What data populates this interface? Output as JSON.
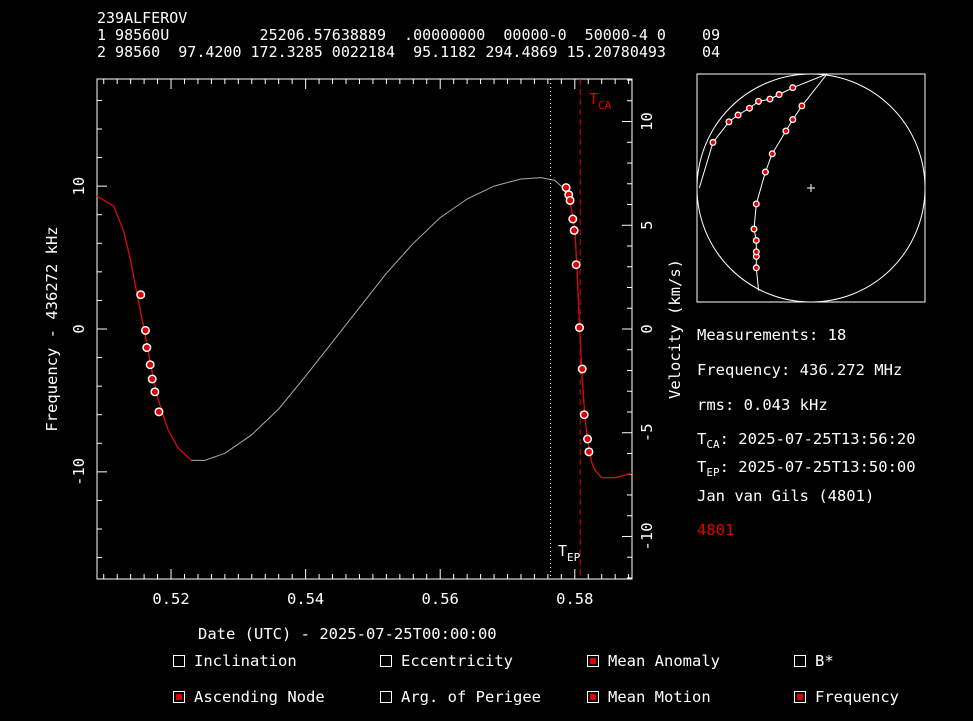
{
  "header": {
    "name": "239ALFEROV",
    "line1": "1 98560U          25206.57638889  .00000000  00000-0  50000-4 0    09",
    "line2": "2 98560  97.4200 172.3285 0022184  95.1182 294.4869 15.20780493    04"
  },
  "chart_data": {
    "type": "line",
    "xlabel": "Date (UTC) - 2025-07-25T00:00:00",
    "ylabel": "Frequency - 436272 kHz",
    "y2label": "Velocity (km/s)",
    "xlim": [
      0.509,
      0.5885
    ],
    "ylim": [
      -17.5,
      17.5
    ],
    "y2lim": [
      -12.05,
      12.05
    ],
    "xticks": [
      "0.52",
      "0.54",
      "0.56",
      "0.58"
    ],
    "yticks": [
      "10",
      "0",
      "-10"
    ],
    "y2ticks": [
      "10",
      "5",
      "0",
      "-5",
      "-10"
    ],
    "markers": {
      "tca": 0.5808,
      "tep": 0.5764,
      "tca_label": "T",
      "tca_sub": "CA",
      "tep_label": "T",
      "tep_sub": "EP"
    },
    "measurements": [
      {
        "x": 0.5155,
        "y": 2.4
      },
      {
        "x": 0.5162,
        "y": -0.1
      },
      {
        "x": 0.5164,
        "y": -1.3
      },
      {
        "x": 0.5169,
        "y": -2.5
      },
      {
        "x": 0.5172,
        "y": -3.5
      },
      {
        "x": 0.5176,
        "y": -4.4
      },
      {
        "x": 0.5182,
        "y": -5.8
      },
      {
        "x": 0.5787,
        "y": 9.9
      },
      {
        "x": 0.5791,
        "y": 9.4
      },
      {
        "x": 0.5793,
        "y": 9.0
      },
      {
        "x": 0.5797,
        "y": 7.7
      },
      {
        "x": 0.5799,
        "y": 6.9
      },
      {
        "x": 0.5802,
        "y": 4.5
      },
      {
        "x": 0.5807,
        "y": 0.1
      },
      {
        "x": 0.5811,
        "y": -2.8
      },
      {
        "x": 0.5814,
        "y": -6.0
      },
      {
        "x": 0.5819,
        "y": -7.7
      },
      {
        "x": 0.5821,
        "y": -8.6
      }
    ],
    "series": [
      {
        "values": [
          [
            0.509,
            9.3
          ],
          [
            0.5115,
            8.6
          ],
          [
            0.513,
            6.8
          ],
          [
            0.514,
            4.8
          ],
          [
            0.515,
            2.3
          ],
          [
            0.516,
            0.0
          ],
          [
            0.5171,
            -2.8
          ],
          [
            0.518,
            -4.8
          ],
          [
            0.5195,
            -7.0
          ],
          [
            0.521,
            -8.3
          ],
          [
            0.523,
            -9.2
          ],
          [
            0.525,
            -9.2
          ],
          [
            0.528,
            -8.7
          ],
          [
            0.532,
            -7.4
          ],
          [
            0.536,
            -5.6
          ],
          [
            0.54,
            -3.3
          ],
          [
            0.544,
            -0.9
          ],
          [
            0.548,
            1.5
          ],
          [
            0.552,
            3.9
          ],
          [
            0.556,
            6.0
          ],
          [
            0.56,
            7.8
          ],
          [
            0.564,
            9.1
          ],
          [
            0.568,
            10.0
          ],
          [
            0.572,
            10.5
          ],
          [
            0.575,
            10.6
          ],
          [
            0.577,
            10.4
          ],
          [
            0.578,
            10.0
          ],
          [
            0.5788,
            9.5
          ],
          [
            0.5795,
            8.4
          ],
          [
            0.58,
            7.0
          ],
          [
            0.5803,
            4.5
          ],
          [
            0.5807,
            0.3
          ],
          [
            0.581,
            -2.6
          ],
          [
            0.5814,
            -5.5
          ],
          [
            0.5818,
            -7.5
          ],
          [
            0.5825,
            -9.3
          ],
          [
            0.583,
            -9.9
          ],
          [
            0.584,
            -10.4
          ],
          [
            0.586,
            -10.4
          ],
          [
            0.5885,
            -10.1
          ]
        ]
      }
    ],
    "red_range": [
      [
        0.509,
        0.5237
      ],
      [
        0.5774,
        0.5885
      ]
    ]
  },
  "polar": {
    "track1": [
      [
        0.07,
        0.3
      ],
      [
        0.14,
        0.21
      ],
      [
        0.18,
        0.18
      ],
      [
        0.23,
        0.15
      ],
      [
        0.27,
        0.12
      ],
      [
        0.32,
        0.11
      ],
      [
        0.36,
        0.09
      ],
      [
        0.42,
        0.06
      ]
    ],
    "track2": [
      [
        0.26,
        0.85
      ],
      [
        0.26,
        0.8
      ],
      [
        0.26,
        0.78
      ],
      [
        0.26,
        0.73
      ],
      [
        0.25,
        0.68
      ],
      [
        0.26,
        0.57
      ],
      [
        0.3,
        0.43
      ],
      [
        0.33,
        0.35
      ],
      [
        0.39,
        0.25
      ],
      [
        0.42,
        0.2
      ],
      [
        0.46,
        0.14
      ]
    ]
  },
  "info": {
    "measurements": "Measurements: 18",
    "frequency": "Frequency: 436.272 MHz",
    "rms": "rms: 0.043 kHz",
    "tca_label": "T",
    "tca_sub": "CA",
    "tca_value": ": 2025-07-25T13:56:20",
    "tep_label": "T",
    "tep_sub": "EP",
    "tep_value": ": 2025-07-25T13:50:00",
    "observer": "Jan van Gils (4801)",
    "site": "4801"
  },
  "options": [
    {
      "label": "Inclination",
      "checked": false
    },
    {
      "label": "Eccentricity",
      "checked": false
    },
    {
      "label": "Mean Anomaly",
      "checked": true
    },
    {
      "label": "B*",
      "checked": false
    },
    {
      "label": "Ascending Node",
      "checked": true
    },
    {
      "label": "Arg. of Perigee",
      "checked": false
    },
    {
      "label": "Mean Motion",
      "checked": true
    },
    {
      "label": "Frequency",
      "checked": true
    }
  ],
  "colors": {
    "fit": "#aaaaaa",
    "fit_red": "#e00000",
    "marker": "#e00000",
    "text": "#ffffff"
  }
}
